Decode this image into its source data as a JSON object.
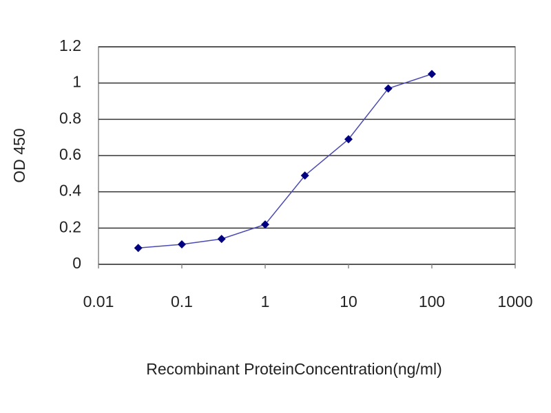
{
  "chart_data": {
    "type": "line",
    "x_label": "Recombinant ProteinConcentration(ng/ml)",
    "y_label": "OD 450",
    "x": [
      0.03,
      0.1,
      0.3,
      1,
      3,
      10,
      30,
      100
    ],
    "series": [
      {
        "color": "#000080",
        "values": [
          0.09,
          0.11,
          0.14,
          0.22,
          0.49,
          0.69,
          0.97,
          1.05
        ]
      }
    ],
    "xscale": "log",
    "xlim": [
      0.01,
      1000
    ],
    "xticks": [
      0.01,
      0.1,
      1,
      10,
      100,
      1000
    ],
    "ylim": [
      0,
      1.2
    ],
    "yticks": [
      0,
      0.2,
      0.4,
      0.6,
      0.8,
      1,
      1.2
    ],
    "grid": true
  }
}
